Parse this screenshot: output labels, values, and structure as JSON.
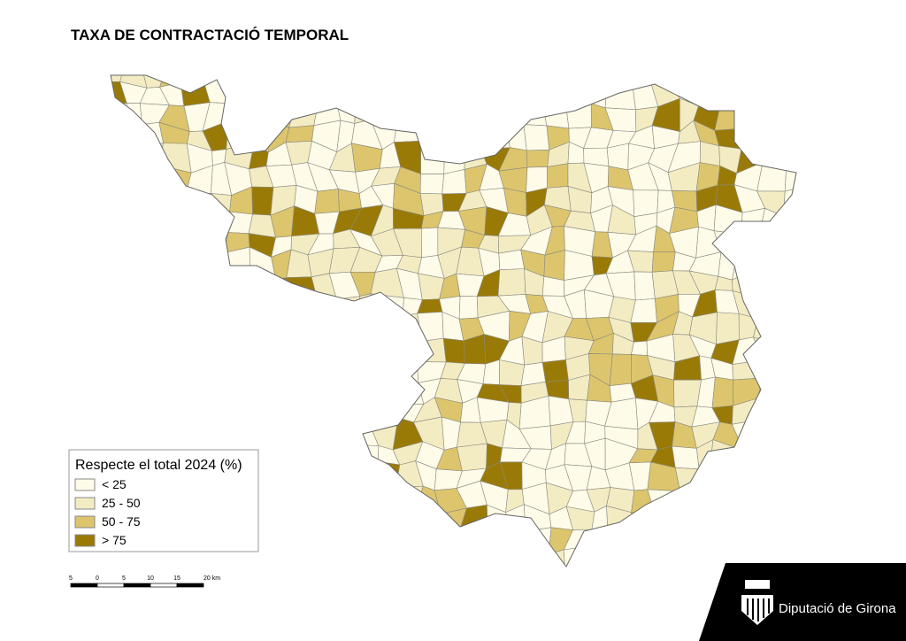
{
  "title": "TAXA DE CONTRACTACIÓ TEMPORAL",
  "legend": {
    "title": "Respecte el total 2024 (%)",
    "items": [
      {
        "label": "< 25",
        "color": "#fefbe8"
      },
      {
        "label": "25 - 50",
        "color": "#f3ebc2"
      },
      {
        "label": "50 - 75",
        "color": "#dcc56c"
      },
      {
        "label": "> 75",
        "color": "#9a7a06"
      }
    ]
  },
  "scale_bar": {
    "labels": [
      "5",
      "0",
      "5",
      "10",
      "15",
      "20 km"
    ]
  },
  "logo": {
    "text": "Diputació de Girona"
  }
}
